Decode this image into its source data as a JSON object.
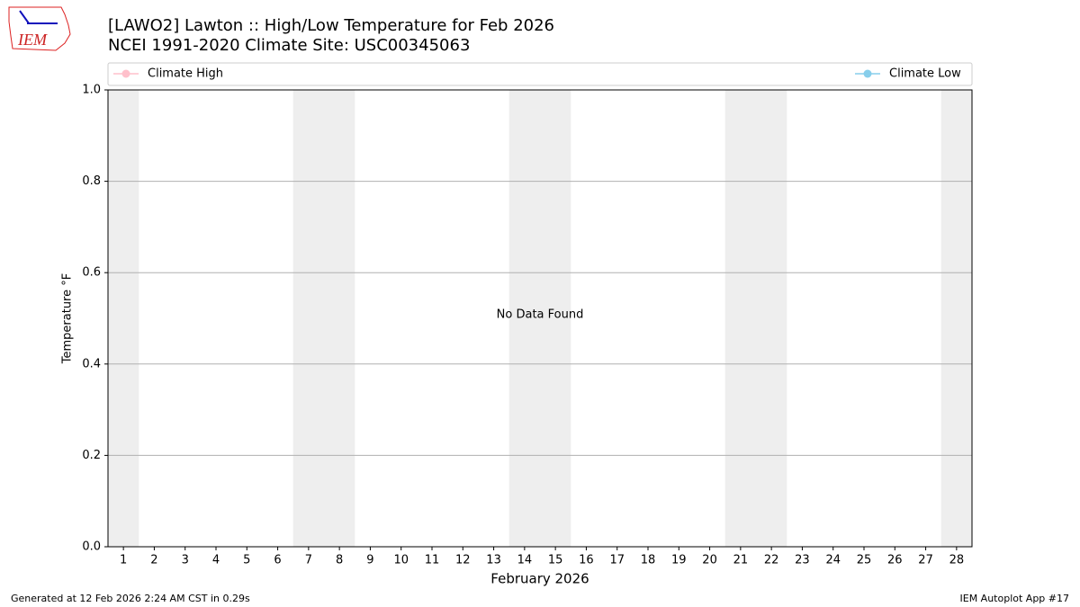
{
  "logo_text": "IEM",
  "chart_data": {
    "type": "line",
    "title": "[LAWO2] Lawton :: High/Low Temperature for Feb 2026",
    "subtitle": "NCEI 1991-2020 Climate Site: USC00345063",
    "xlabel": "February 2026",
    "ylabel": "Temperature °F",
    "annotation": "No Data Found",
    "x": [],
    "series": [
      {
        "name": "Climate High",
        "color": "#ffc0cb",
        "values": []
      },
      {
        "name": "Climate Low",
        "color": "#87ceeb",
        "values": []
      }
    ],
    "xlim": [
      0.5,
      28.5
    ],
    "xticks": [
      1,
      2,
      3,
      4,
      5,
      6,
      7,
      8,
      9,
      10,
      11,
      12,
      13,
      14,
      15,
      16,
      17,
      18,
      19,
      20,
      21,
      22,
      23,
      24,
      25,
      26,
      27,
      28
    ],
    "shaded_days": [
      1,
      7,
      8,
      14,
      15,
      21,
      22,
      28
    ],
    "ylim": [
      0,
      1
    ],
    "yticks": [
      {
        "value": 0,
        "label": "0.0"
      },
      0.2,
      0.4,
      0.6,
      0.8,
      {
        "value": 1,
        "label": "1.0"
      }
    ],
    "grid": true,
    "shade_color": "#eeeeee"
  },
  "footer": {
    "left": "Generated at 12 Feb 2026 2:24 AM CST in 0.29s",
    "right": "IEM Autoplot App #17"
  }
}
